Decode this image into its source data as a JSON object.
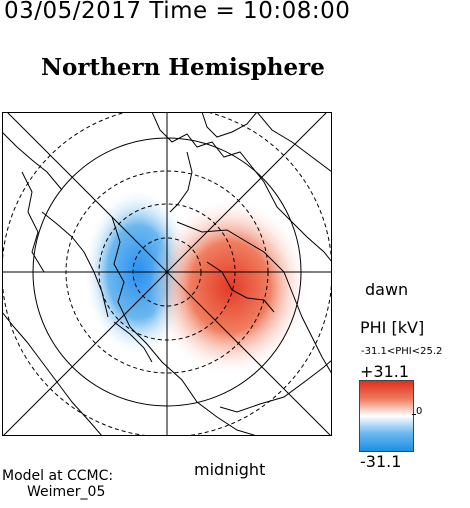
{
  "header": {
    "date_time": "03/05/2017 Time = 10:08:00"
  },
  "plot": {
    "title": "Northern Hemisphere",
    "dawn_label": "dawn",
    "midnight_label": "midnight"
  },
  "colorbar": {
    "label": "PHI [kV]",
    "range_text": "-31.1<PHI<25.2",
    "max_label": "+31.1",
    "min_label": "-31.1",
    "zero_label": "0",
    "colors": {
      "max": "#e03020",
      "zero": "#ffffff",
      "min": "#1c8fe6"
    }
  },
  "credit": {
    "line1": "Model at CCMC:",
    "line2": "Weimer_05"
  }
}
